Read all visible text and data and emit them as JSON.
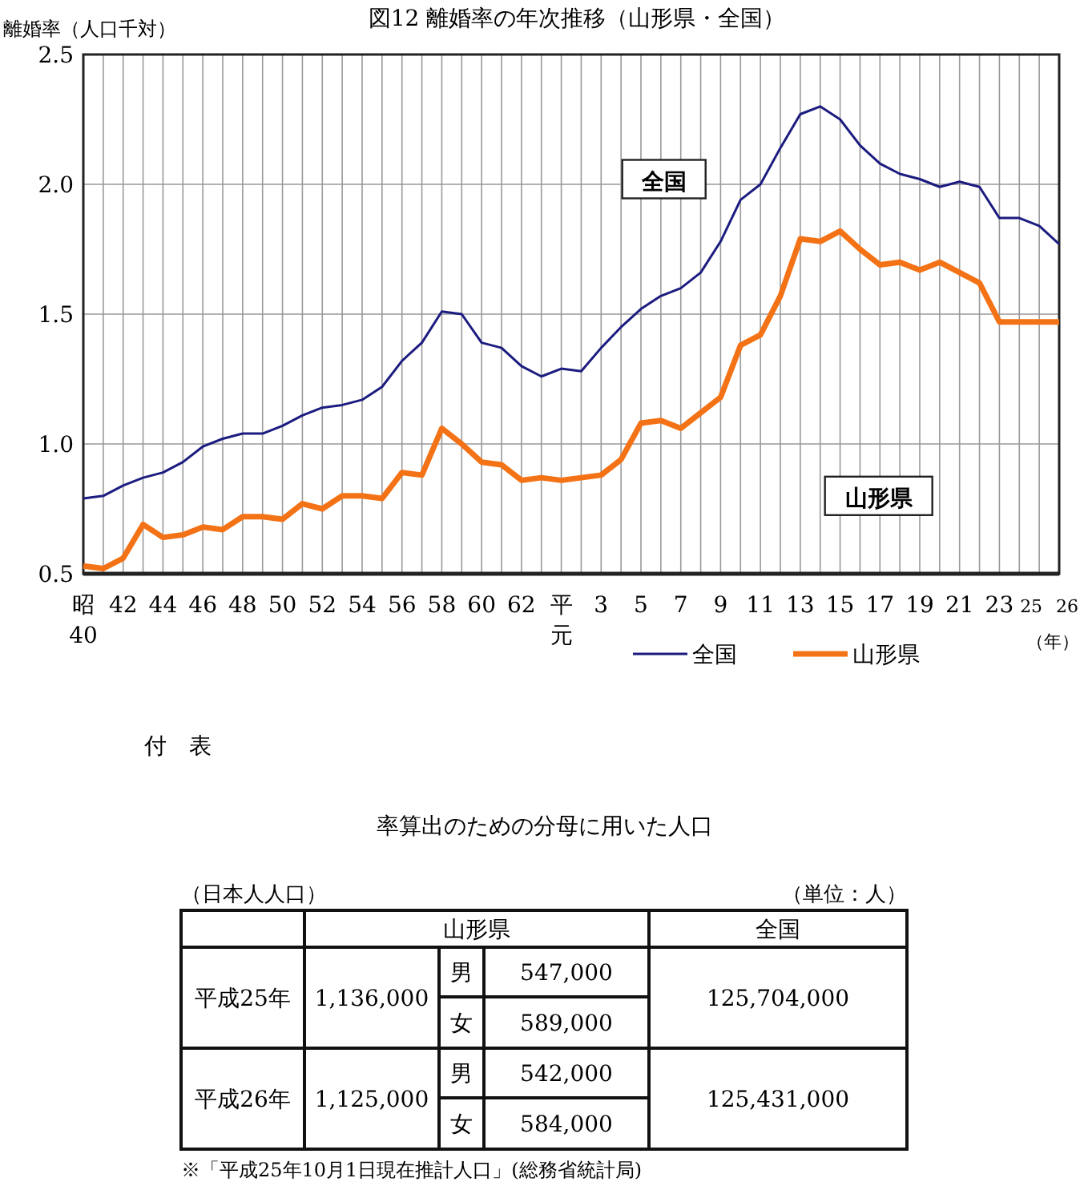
{
  "chart_data": [
    {
      "type": "line",
      "title": "図12 離婚率の年次推移（山形県・全国）",
      "ylabel": "離婚率（人口千対）",
      "xlabel": "（年）",
      "categories": [
        "昭40",
        null,
        "42",
        null,
        "44",
        null,
        "46",
        null,
        "48",
        null,
        "50",
        null,
        "52",
        null,
        "54",
        null,
        "56",
        null,
        "58",
        null,
        "60",
        null,
        "62",
        null,
        "平元",
        null,
        "3",
        null,
        "5",
        null,
        "7",
        null,
        "9",
        null,
        "11",
        null,
        "13",
        null,
        "15",
        null,
        "17",
        null,
        "19",
        null,
        "21",
        null,
        "23",
        null,
        "25",
        "26"
      ],
      "series": [
        {
          "name": "全国",
          "color": "#1c1c80",
          "values": [
            0.79,
            0.8,
            0.84,
            0.87,
            0.89,
            0.93,
            0.99,
            1.02,
            1.04,
            1.04,
            1.07,
            1.11,
            1.14,
            1.15,
            1.17,
            1.22,
            1.32,
            1.39,
            1.51,
            1.5,
            1.39,
            1.37,
            1.3,
            1.26,
            1.29,
            1.28,
            1.37,
            1.45,
            1.52,
            1.57,
            1.6,
            1.66,
            1.78,
            1.94,
            2.0,
            2.14,
            2.27,
            2.3,
            2.25,
            2.15,
            2.08,
            2.04,
            2.02,
            1.99,
            2.01,
            1.99,
            1.87,
            1.87,
            1.84,
            1.77
          ]
        },
        {
          "name": "山形県",
          "color": "#f47216",
          "values": [
            0.53,
            0.52,
            0.56,
            0.69,
            0.64,
            0.65,
            0.68,
            0.67,
            0.72,
            0.72,
            0.71,
            0.77,
            0.75,
            0.8,
            0.8,
            0.79,
            0.89,
            0.88,
            1.06,
            1.0,
            0.93,
            0.92,
            0.86,
            0.87,
            0.86,
            0.87,
            0.88,
            0.94,
            1.08,
            1.09,
            1.06,
            1.12,
            1.18,
            1.38,
            1.42,
            1.57,
            1.79,
            1.78,
            1.82,
            1.75,
            1.69,
            1.7,
            1.67,
            1.7,
            1.66,
            1.62,
            1.47,
            1.47,
            1.47,
            1.47
          ]
        }
      ],
      "ylim": [
        0.5,
        2.5
      ],
      "yticks": [
        {
          "value": 0.5,
          "label": "0.5"
        },
        {
          "value": 1.0,
          "label": "1.0"
        },
        {
          "value": 1.5,
          "label": "1.5"
        },
        {
          "value": 2.0,
          "label": "2.0"
        },
        {
          "value": 2.5,
          "label": "2.5"
        }
      ],
      "grid": true,
      "legend": "bottom",
      "annotations": [
        "全国",
        "山形県"
      ]
    },
    {
      "type": "other",
      "title": "率算出のための分母に用いた人口",
      "annotations": [
        "付　表",
        "（日本人人口）",
        "（単位：人）",
        "※「平成25年10月1日現在推計人口」(総務省統計局)"
      ],
      "cell_labels": [
        [
          null,
          "山形県",
          "全国"
        ],
        [
          "平成25年",
          "1,136,000",
          "男",
          "547,000",
          "125,704,000"
        ],
        [
          "女",
          "589,000"
        ],
        [
          "平成26年",
          "1,125,000",
          "男",
          "542,000",
          "125,431,000"
        ],
        [
          "女",
          "584,000"
        ]
      ]
    }
  ]
}
